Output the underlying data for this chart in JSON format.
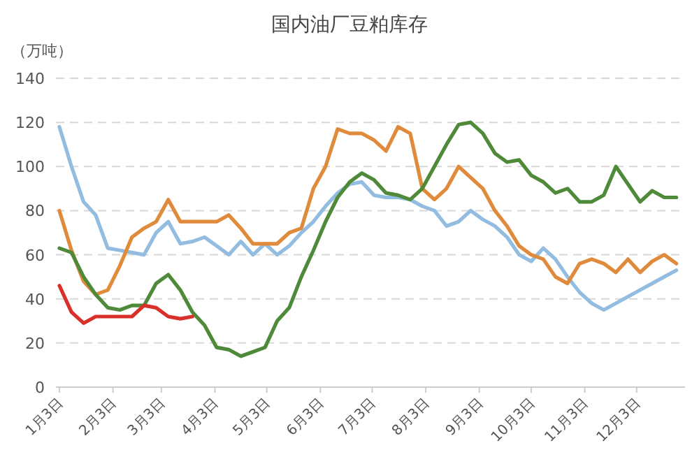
{
  "chart_data": {
    "type": "line",
    "title": "国内油厂豆粕库存",
    "ylabel": "（万吨）",
    "x": [
      "--01-03",
      "--01-10",
      "--01-17",
      "--01-24",
      "--01-31",
      "--02-07",
      "--02-14",
      "--02-21",
      "--02-28",
      "--03-07",
      "--03-14",
      "--03-21",
      "--03-28",
      "--04-04",
      "--04-11",
      "--04-18",
      "--04-25",
      "--05-02",
      "--05-09",
      "--05-16",
      "--05-23",
      "--05-30",
      "--06-06",
      "--06-13",
      "--06-20",
      "--06-27",
      "--07-04",
      "--07-11",
      "--07-18",
      "--07-25",
      "--08-01",
      "--08-08",
      "--08-15",
      "--08-22",
      "--08-29",
      "--09-05",
      "--09-12",
      "--09-19",
      "--09-26",
      "--10-03",
      "--10-10",
      "--10-17",
      "--10-24",
      "--10-31",
      "--11-07",
      "--11-14",
      "--11-21",
      "--11-28",
      "--12-05",
      "--12-12",
      "--12-19",
      "--12-26"
    ],
    "series": [
      {
        "color": "#93bde0",
        "values": [
          118,
          100,
          84,
          78,
          63,
          62,
          61,
          60,
          70,
          75,
          65,
          66,
          68,
          64,
          60,
          66,
          60,
          65,
          60,
          64,
          70,
          75,
          82,
          88,
          92,
          93,
          87,
          86,
          86,
          85,
          82,
          80,
          73,
          75,
          80,
          76,
          73,
          68,
          60,
          57,
          63,
          58,
          50,
          43,
          38,
          35,
          38,
          41,
          44,
          47,
          50,
          53
        ]
      },
      {
        "color": "#e08a3c",
        "values": [
          80,
          62,
          48,
          42,
          44,
          55,
          68,
          72,
          75,
          85,
          75,
          75,
          75,
          75,
          78,
          72,
          65,
          65,
          65,
          70,
          72,
          90,
          100,
          117,
          115,
          115,
          112,
          107,
          118,
          115,
          90,
          85,
          90,
          100,
          95,
          90,
          80,
          73,
          64,
          60,
          58,
          50,
          47,
          56,
          58,
          56,
          52,
          58,
          52,
          57,
          60,
          56
        ]
      },
      {
        "color": "#4f8a3a",
        "values": [
          63,
          61,
          50,
          42,
          36,
          35,
          37,
          37,
          47,
          51,
          44,
          34,
          28,
          18,
          17,
          14,
          16,
          18,
          30,
          36,
          50,
          62,
          75,
          86,
          93,
          97,
          94,
          88,
          87,
          85,
          90,
          100,
          110,
          119,
          120,
          115,
          106,
          102,
          103,
          96,
          93,
          88,
          90,
          84,
          84,
          87,
          100,
          92,
          84,
          89,
          86,
          86
        ]
      },
      {
        "color": "#d9302a",
        "values": [
          46,
          34,
          29,
          32,
          32,
          32,
          32,
          37,
          36,
          32,
          31,
          32,
          null,
          null,
          null,
          null,
          null,
          null,
          null,
          null,
          null,
          null,
          null,
          null,
          null,
          null,
          null,
          null,
          null,
          null,
          null,
          null,
          null,
          null,
          null,
          null,
          null,
          null,
          null,
          null,
          null,
          null,
          null,
          null,
          null,
          null,
          null,
          null,
          null,
          null,
          null,
          null
        ]
      }
    ],
    "xlim": [
      "--01-01",
      "--12-31"
    ],
    "xticks": [
      {
        "value": "--01-03",
        "label": "1月3日"
      },
      {
        "value": "--02-03",
        "label": "2月3日"
      },
      {
        "value": "--03-03",
        "label": "3月3日"
      },
      {
        "value": "--04-03",
        "label": "4月3日"
      },
      {
        "value": "--05-03",
        "label": "5月3日"
      },
      {
        "value": "--06-03",
        "label": "6月3日"
      },
      {
        "value": "--07-03",
        "label": "7月3日"
      },
      {
        "value": "--08-03",
        "label": "8月3日"
      },
      {
        "value": "--09-03",
        "label": "9月3日"
      },
      {
        "value": "--10-03",
        "label": "10月3日"
      },
      {
        "value": "--11-03",
        "label": "11月3日"
      },
      {
        "value": "--12-03",
        "label": "12月3日"
      }
    ],
    "ylim": [
      0,
      140
    ],
    "yticks": [
      0,
      20,
      40,
      60,
      80,
      100,
      120,
      140
    ],
    "grid": "y",
    "marker": "none",
    "line_style": "solid"
  }
}
